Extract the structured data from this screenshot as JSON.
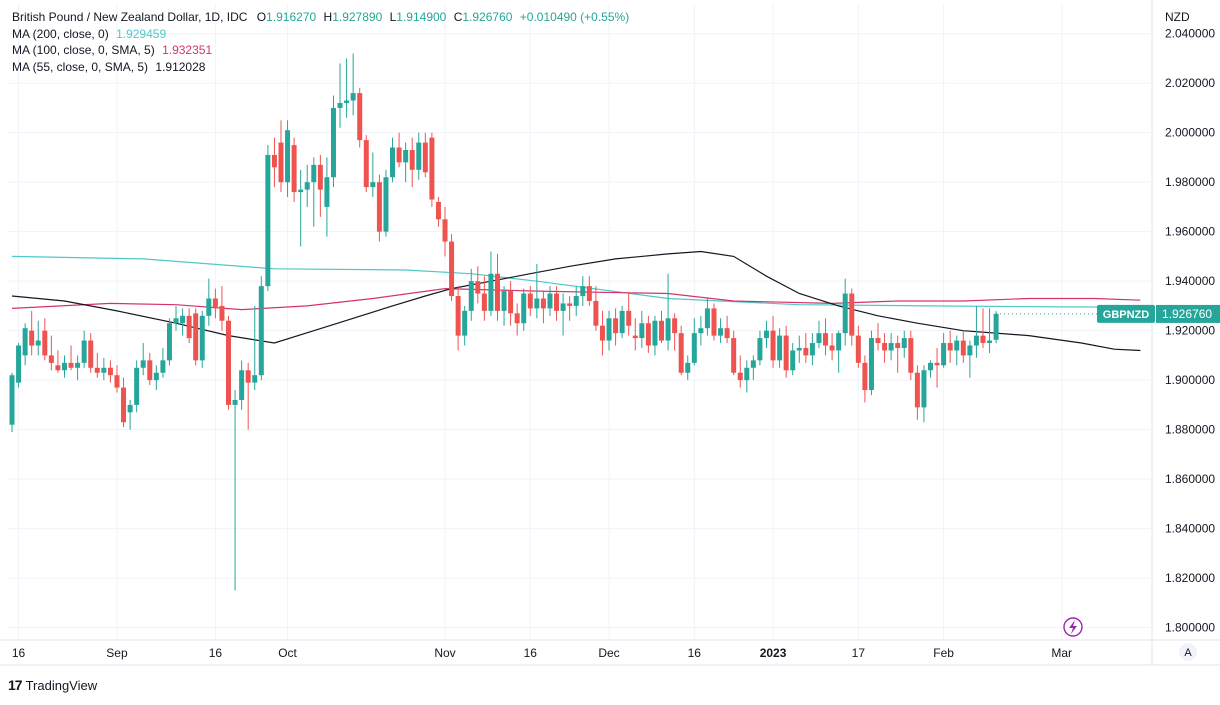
{
  "header": {
    "title": "British Pound / New Zealand Dollar, 1D, IDC",
    "ohlc": [
      {
        "label": "O",
        "value": "1.916270"
      },
      {
        "label": "H",
        "value": "1.927890"
      },
      {
        "label": "L",
        "value": "1.914900"
      },
      {
        "label": "C",
        "value": "1.926760"
      }
    ],
    "change": "+0.010490 (+0.55%)"
  },
  "indicators": [
    {
      "label": "MA (200, close, 0)",
      "value": "1.929459",
      "color": "#4ec8c8"
    },
    {
      "label": "MA (100, close, 0, SMA, 5)",
      "value": "1.932351",
      "color": "#d6336c"
    },
    {
      "label": "MA (55, close, 0, SMA, 5)",
      "value": "1.912028",
      "color": "#131722"
    }
  ],
  "axis": {
    "currency": "NZD",
    "price_ticks": [
      "2.040000",
      "2.020000",
      "2.000000",
      "1.980000",
      "1.960000",
      "1.940000",
      "1.920000",
      "1.900000",
      "1.880000",
      "1.860000",
      "1.840000",
      "1.820000",
      "1.800000"
    ],
    "time_labels": [
      "16",
      "Sep",
      "16",
      "Oct",
      "Nov",
      "16",
      "Dec",
      "16",
      "2023",
      "17",
      "Feb",
      "Mar"
    ],
    "scale_mode": "A"
  },
  "last_price": {
    "symbol": "GBPNZD",
    "value": "1.926760"
  },
  "colors": {
    "up": "#26a69a",
    "down": "#ef5350",
    "grid": "#f0f3fa",
    "axis_text": "#131722",
    "tag_bg": "#26a69a"
  },
  "footer": {
    "brand": "TradingView",
    "logo_glyph": "17"
  },
  "chart_data": {
    "type": "candlestick",
    "title": "British Pound / New Zealand Dollar, 1D, IDC",
    "ylabel": "NZD",
    "ylim": [
      1.795,
      2.052
    ],
    "x_range": [
      0,
      173
    ],
    "time_label_index": [
      1,
      16,
      31,
      42,
      66,
      79,
      91,
      104,
      116,
      129,
      142,
      160
    ],
    "candles": [
      {
        "o": 1.882,
        "h": 1.903,
        "l": 1.879,
        "c": 1.902
      },
      {
        "o": 1.899,
        "h": 1.915,
        "l": 1.897,
        "c": 1.914
      },
      {
        "o": 1.91,
        "h": 1.923,
        "l": 1.906,
        "c": 1.921
      },
      {
        "o": 1.92,
        "h": 1.928,
        "l": 1.91,
        "c": 1.914
      },
      {
        "o": 1.914,
        "h": 1.924,
        "l": 1.91,
        "c": 1.916
      },
      {
        "o": 1.92,
        "h": 1.925,
        "l": 1.908,
        "c": 1.91
      },
      {
        "o": 1.91,
        "h": 1.918,
        "l": 1.904,
        "c": 1.907
      },
      {
        "o": 1.906,
        "h": 1.912,
        "l": 1.903,
        "c": 1.904
      },
      {
        "o": 1.904,
        "h": 1.91,
        "l": 1.901,
        "c": 1.907
      },
      {
        "o": 1.907,
        "h": 1.914,
        "l": 1.904,
        "c": 1.905
      },
      {
        "o": 1.905,
        "h": 1.91,
        "l": 1.9,
        "c": 1.907
      },
      {
        "o": 1.907,
        "h": 1.92,
        "l": 1.905,
        "c": 1.916
      },
      {
        "o": 1.916,
        "h": 1.919,
        "l": 1.903,
        "c": 1.905
      },
      {
        "o": 1.905,
        "h": 1.911,
        "l": 1.901,
        "c": 1.903
      },
      {
        "o": 1.903,
        "h": 1.909,
        "l": 1.9,
        "c": 1.905
      },
      {
        "o": 1.905,
        "h": 1.908,
        "l": 1.899,
        "c": 1.902
      },
      {
        "o": 1.902,
        "h": 1.906,
        "l": 1.895,
        "c": 1.897
      },
      {
        "o": 1.897,
        "h": 1.901,
        "l": 1.881,
        "c": 1.883
      },
      {
        "o": 1.887,
        "h": 1.892,
        "l": 1.88,
        "c": 1.89
      },
      {
        "o": 1.89,
        "h": 1.908,
        "l": 1.887,
        "c": 1.905
      },
      {
        "o": 1.905,
        "h": 1.915,
        "l": 1.902,
        "c": 1.908
      },
      {
        "o": 1.908,
        "h": 1.911,
        "l": 1.898,
        "c": 1.9
      },
      {
        "o": 1.9,
        "h": 1.906,
        "l": 1.896,
        "c": 1.903
      },
      {
        "o": 1.903,
        "h": 1.913,
        "l": 1.901,
        "c": 1.908
      },
      {
        "o": 1.908,
        "h": 1.925,
        "l": 1.906,
        "c": 1.923
      },
      {
        "o": 1.923,
        "h": 1.93,
        "l": 1.92,
        "c": 1.925
      },
      {
        "o": 1.923,
        "h": 1.929,
        "l": 1.918,
        "c": 1.926
      },
      {
        "o": 1.926,
        "h": 1.929,
        "l": 1.915,
        "c": 1.917
      },
      {
        "o": 1.927,
        "h": 1.929,
        "l": 1.906,
        "c": 1.908
      },
      {
        "o": 1.908,
        "h": 1.928,
        "l": 1.905,
        "c": 1.926
      },
      {
        "o": 1.926,
        "h": 1.941,
        "l": 1.922,
        "c": 1.933
      },
      {
        "o": 1.933,
        "h": 1.937,
        "l": 1.925,
        "c": 1.929
      },
      {
        "o": 1.93,
        "h": 1.938,
        "l": 1.92,
        "c": 1.924
      },
      {
        "o": 1.924,
        "h": 1.926,
        "l": 1.888,
        "c": 1.89
      },
      {
        "o": 1.89,
        "h": 1.896,
        "l": 1.815,
        "c": 1.892
      },
      {
        "o": 1.892,
        "h": 1.908,
        "l": 1.888,
        "c": 1.904
      },
      {
        "o": 1.904,
        "h": 1.907,
        "l": 1.88,
        "c": 1.899
      },
      {
        "o": 1.899,
        "h": 1.93,
        "l": 1.896,
        "c": 1.902
      },
      {
        "o": 1.902,
        "h": 1.942,
        "l": 1.9,
        "c": 1.938
      },
      {
        "o": 1.938,
        "h": 1.995,
        "l": 1.936,
        "c": 1.991
      },
      {
        "o": 1.991,
        "h": 1.998,
        "l": 1.978,
        "c": 1.986
      },
      {
        "o": 1.996,
        "h": 2.005,
        "l": 1.976,
        "c": 1.98
      },
      {
        "o": 1.98,
        "h": 2.005,
        "l": 1.974,
        "c": 2.001
      },
      {
        "o": 1.995,
        "h": 1.998,
        "l": 1.972,
        "c": 1.976
      },
      {
        "o": 1.976,
        "h": 1.985,
        "l": 1.954,
        "c": 1.977
      },
      {
        "o": 1.977,
        "h": 1.987,
        "l": 1.97,
        "c": 1.98
      },
      {
        "o": 1.98,
        "h": 1.99,
        "l": 1.962,
        "c": 1.987
      },
      {
        "o": 1.987,
        "h": 1.991,
        "l": 1.966,
        "c": 1.977
      },
      {
        "o": 1.97,
        "h": 1.99,
        "l": 1.958,
        "c": 1.982
      },
      {
        "o": 1.982,
        "h": 2.015,
        "l": 1.978,
        "c": 2.01
      },
      {
        "o": 2.01,
        "h": 2.028,
        "l": 2.002,
        "c": 2.012
      },
      {
        "o": 2.012,
        "h": 2.03,
        "l": 2.006,
        "c": 2.013
      },
      {
        "o": 2.013,
        "h": 2.032,
        "l": 2.007,
        "c": 2.016
      },
      {
        "o": 2.016,
        "h": 2.018,
        "l": 1.994,
        "c": 1.997
      },
      {
        "o": 1.997,
        "h": 1.999,
        "l": 1.976,
        "c": 1.978
      },
      {
        "o": 1.978,
        "h": 1.992,
        "l": 1.974,
        "c": 1.98
      },
      {
        "o": 1.98,
        "h": 1.983,
        "l": 1.956,
        "c": 1.96
      },
      {
        "o": 1.96,
        "h": 1.985,
        "l": 1.958,
        "c": 1.982
      },
      {
        "o": 1.982,
        "h": 1.998,
        "l": 1.98,
        "c": 1.994
      },
      {
        "o": 1.994,
        "h": 2.0,
        "l": 1.986,
        "c": 1.988
      },
      {
        "o": 1.988,
        "h": 1.996,
        "l": 1.98,
        "c": 1.993
      },
      {
        "o": 1.993,
        "h": 1.998,
        "l": 1.978,
        "c": 1.985
      },
      {
        "o": 1.985,
        "h": 2.0,
        "l": 1.981,
        "c": 1.996
      },
      {
        "o": 1.996,
        "h": 2.0,
        "l": 1.982,
        "c": 1.984
      },
      {
        "o": 1.998,
        "h": 2.0,
        "l": 1.97,
        "c": 1.973
      },
      {
        "o": 1.972,
        "h": 1.974,
        "l": 1.962,
        "c": 1.965
      },
      {
        "o": 1.965,
        "h": 1.97,
        "l": 1.95,
        "c": 1.956
      },
      {
        "o": 1.956,
        "h": 1.959,
        "l": 1.932,
        "c": 1.934
      },
      {
        "o": 1.934,
        "h": 1.938,
        "l": 1.912,
        "c": 1.918
      },
      {
        "o": 1.918,
        "h": 1.93,
        "l": 1.914,
        "c": 1.928
      },
      {
        "o": 1.928,
        "h": 1.945,
        "l": 1.924,
        "c": 1.94
      },
      {
        "o": 1.94,
        "h": 1.946,
        "l": 1.931,
        "c": 1.935
      },
      {
        "o": 1.935,
        "h": 1.942,
        "l": 1.924,
        "c": 1.928
      },
      {
        "o": 1.928,
        "h": 1.952,
        "l": 1.926,
        "c": 1.943
      },
      {
        "o": 1.943,
        "h": 1.951,
        "l": 1.924,
        "c": 1.928
      },
      {
        "o": 1.928,
        "h": 1.938,
        "l": 1.922,
        "c": 1.936
      },
      {
        "o": 1.936,
        "h": 1.94,
        "l": 1.922,
        "c": 1.927
      },
      {
        "o": 1.927,
        "h": 1.931,
        "l": 1.918,
        "c": 1.923
      },
      {
        "o": 1.923,
        "h": 1.937,
        "l": 1.92,
        "c": 1.935
      },
      {
        "o": 1.935,
        "h": 1.938,
        "l": 1.926,
        "c": 1.929
      },
      {
        "o": 1.929,
        "h": 1.947,
        "l": 1.925,
        "c": 1.933
      },
      {
        "o": 1.933,
        "h": 1.936,
        "l": 1.923,
        "c": 1.929
      },
      {
        "o": 1.929,
        "h": 1.938,
        "l": 1.926,
        "c": 1.935
      },
      {
        "o": 1.935,
        "h": 1.938,
        "l": 1.924,
        "c": 1.928
      },
      {
        "o": 1.928,
        "h": 1.935,
        "l": 1.918,
        "c": 1.931
      },
      {
        "o": 1.931,
        "h": 1.934,
        "l": 1.924,
        "c": 1.93
      },
      {
        "o": 1.93,
        "h": 1.938,
        "l": 1.926,
        "c": 1.934
      },
      {
        "o": 1.934,
        "h": 1.942,
        "l": 1.93,
        "c": 1.938
      },
      {
        "o": 1.938,
        "h": 1.942,
        "l": 1.93,
        "c": 1.932
      },
      {
        "o": 1.932,
        "h": 1.938,
        "l": 1.92,
        "c": 1.922
      },
      {
        "o": 1.922,
        "h": 1.928,
        "l": 1.91,
        "c": 1.916
      },
      {
        "o": 1.916,
        "h": 1.928,
        "l": 1.912,
        "c": 1.925
      },
      {
        "o": 1.925,
        "h": 1.929,
        "l": 1.914,
        "c": 1.919
      },
      {
        "o": 1.919,
        "h": 1.93,
        "l": 1.917,
        "c": 1.928
      },
      {
        "o": 1.928,
        "h": 1.935,
        "l": 1.918,
        "c": 1.922
      },
      {
        "o": 1.918,
        "h": 1.925,
        "l": 1.912,
        "c": 1.917
      },
      {
        "o": 1.917,
        "h": 1.928,
        "l": 1.913,
        "c": 1.923
      },
      {
        "o": 1.923,
        "h": 1.926,
        "l": 1.911,
        "c": 1.914
      },
      {
        "o": 1.914,
        "h": 1.926,
        "l": 1.91,
        "c": 1.924
      },
      {
        "o": 1.924,
        "h": 1.928,
        "l": 1.915,
        "c": 1.916
      },
      {
        "o": 1.916,
        "h": 1.943,
        "l": 1.912,
        "c": 1.925
      },
      {
        "o": 1.925,
        "h": 1.927,
        "l": 1.912,
        "c": 1.919
      },
      {
        "o": 1.919,
        "h": 1.922,
        "l": 1.902,
        "c": 1.903
      },
      {
        "o": 1.903,
        "h": 1.91,
        "l": 1.9,
        "c": 1.907
      },
      {
        "o": 1.907,
        "h": 1.925,
        "l": 1.906,
        "c": 1.919
      },
      {
        "o": 1.919,
        "h": 1.926,
        "l": 1.914,
        "c": 1.921
      },
      {
        "o": 1.921,
        "h": 1.933,
        "l": 1.918,
        "c": 1.929
      },
      {
        "o": 1.929,
        "h": 1.931,
        "l": 1.916,
        "c": 1.918
      },
      {
        "o": 1.918,
        "h": 1.925,
        "l": 1.915,
        "c": 1.921
      },
      {
        "o": 1.921,
        "h": 1.926,
        "l": 1.915,
        "c": 1.917
      },
      {
        "o": 1.917,
        "h": 1.92,
        "l": 1.902,
        "c": 1.903
      },
      {
        "o": 1.903,
        "h": 1.91,
        "l": 1.897,
        "c": 1.9
      },
      {
        "o": 1.9,
        "h": 1.908,
        "l": 1.895,
        "c": 1.905
      },
      {
        "o": 1.905,
        "h": 1.91,
        "l": 1.9,
        "c": 1.908
      },
      {
        "o": 1.908,
        "h": 1.92,
        "l": 1.906,
        "c": 1.917
      },
      {
        "o": 1.917,
        "h": 1.924,
        "l": 1.913,
        "c": 1.92
      },
      {
        "o": 1.92,
        "h": 1.926,
        "l": 1.905,
        "c": 1.908
      },
      {
        "o": 1.908,
        "h": 1.921,
        "l": 1.905,
        "c": 1.918
      },
      {
        "o": 1.918,
        "h": 1.922,
        "l": 1.901,
        "c": 1.904
      },
      {
        "o": 1.904,
        "h": 1.915,
        "l": 1.902,
        "c": 1.912
      },
      {
        "o": 1.912,
        "h": 1.918,
        "l": 1.907,
        "c": 1.913
      },
      {
        "o": 1.913,
        "h": 1.919,
        "l": 1.907,
        "c": 1.91
      },
      {
        "o": 1.91,
        "h": 1.919,
        "l": 1.906,
        "c": 1.915
      },
      {
        "o": 1.915,
        "h": 1.924,
        "l": 1.913,
        "c": 1.919
      },
      {
        "o": 1.919,
        "h": 1.925,
        "l": 1.91,
        "c": 1.914
      },
      {
        "o": 1.914,
        "h": 1.919,
        "l": 1.908,
        "c": 1.912
      },
      {
        "o": 1.912,
        "h": 1.92,
        "l": 1.903,
        "c": 1.919
      },
      {
        "o": 1.919,
        "h": 1.941,
        "l": 1.914,
        "c": 1.935
      },
      {
        "o": 1.935,
        "h": 1.937,
        "l": 1.914,
        "c": 1.918
      },
      {
        "o": 1.918,
        "h": 1.922,
        "l": 1.905,
        "c": 1.907
      },
      {
        "o": 1.907,
        "h": 1.91,
        "l": 1.891,
        "c": 1.896
      },
      {
        "o": 1.896,
        "h": 1.92,
        "l": 1.894,
        "c": 1.917
      },
      {
        "o": 1.917,
        "h": 1.923,
        "l": 1.912,
        "c": 1.915
      },
      {
        "o": 1.915,
        "h": 1.919,
        "l": 1.907,
        "c": 1.912
      },
      {
        "o": 1.912,
        "h": 1.919,
        "l": 1.908,
        "c": 1.915
      },
      {
        "o": 1.915,
        "h": 1.918,
        "l": 1.903,
        "c": 1.913
      },
      {
        "o": 1.913,
        "h": 1.92,
        "l": 1.909,
        "c": 1.917
      },
      {
        "o": 1.917,
        "h": 1.92,
        "l": 1.9,
        "c": 1.903
      },
      {
        "o": 1.903,
        "h": 1.906,
        "l": 1.884,
        "c": 1.889
      },
      {
        "o": 1.889,
        "h": 1.906,
        "l": 1.883,
        "c": 1.904
      },
      {
        "o": 1.904,
        "h": 1.908,
        "l": 1.901,
        "c": 1.907
      },
      {
        "o": 1.907,
        "h": 1.913,
        "l": 1.897,
        "c": 1.906
      },
      {
        "o": 1.906,
        "h": 1.919,
        "l": 1.905,
        "c": 1.915
      },
      {
        "o": 1.915,
        "h": 1.92,
        "l": 1.907,
        "c": 1.912
      },
      {
        "o": 1.912,
        "h": 1.918,
        "l": 1.906,
        "c": 1.916
      },
      {
        "o": 1.916,
        "h": 1.92,
        "l": 1.907,
        "c": 1.91
      },
      {
        "o": 1.91,
        "h": 1.916,
        "l": 1.901,
        "c": 1.914
      },
      {
        "o": 1.914,
        "h": 1.93,
        "l": 1.909,
        "c": 1.918
      },
      {
        "o": 1.918,
        "h": 1.929,
        "l": 1.913,
        "c": 1.915
      },
      {
        "o": 1.915,
        "h": 1.929,
        "l": 1.911,
        "c": 1.916
      },
      {
        "o": 1.9163,
        "h": 1.9279,
        "l": 1.9149,
        "c": 1.9268
      }
    ],
    "ma_series": [
      {
        "name": "MA (200, close, 0)",
        "color": "#4ec8c8",
        "points": [
          [
            0,
            1.95
          ],
          [
            20,
            1.949
          ],
          [
            40,
            1.945
          ],
          [
            60,
            1.9445
          ],
          [
            70,
            1.943
          ],
          [
            80,
            1.94
          ],
          [
            100,
            1.933
          ],
          [
            120,
            1.9305
          ],
          [
            140,
            1.93
          ],
          [
            160,
            1.9296
          ],
          [
            172,
            1.9295
          ]
        ]
      },
      {
        "name": "MA (100, close, 0, SMA, 5)",
        "color": "#d6336c",
        "points": [
          [
            0,
            1.929
          ],
          [
            15,
            1.931
          ],
          [
            25,
            1.9305
          ],
          [
            35,
            1.9285
          ],
          [
            45,
            1.93
          ],
          [
            55,
            1.933
          ],
          [
            66,
            1.937
          ],
          [
            80,
            1.936
          ],
          [
            100,
            1.935
          ],
          [
            110,
            1.932
          ],
          [
            125,
            1.931
          ],
          [
            135,
            1.932
          ],
          [
            145,
            1.932
          ],
          [
            155,
            1.933
          ],
          [
            165,
            1.933
          ],
          [
            172,
            1.9323
          ]
        ]
      },
      {
        "name": "MA (55, close, 0, SMA, 5)",
        "color": "#131722",
        "points": [
          [
            0,
            1.934
          ],
          [
            8,
            1.932
          ],
          [
            16,
            1.928
          ],
          [
            25,
            1.923
          ],
          [
            33,
            1.918
          ],
          [
            40,
            1.915
          ],
          [
            46,
            1.92
          ],
          [
            52,
            1.925
          ],
          [
            58,
            1.93
          ],
          [
            63,
            1.934
          ],
          [
            67,
            1.937
          ],
          [
            73,
            1.94
          ],
          [
            79,
            1.943
          ],
          [
            85,
            1.946
          ],
          [
            92,
            1.949
          ],
          [
            100,
            1.951
          ],
          [
            105,
            1.952
          ],
          [
            110,
            1.95
          ],
          [
            115,
            1.942
          ],
          [
            120,
            1.935
          ],
          [
            126,
            1.93
          ],
          [
            132,
            1.926
          ],
          [
            138,
            1.923
          ],
          [
            145,
            1.92
          ],
          [
            155,
            1.918
          ],
          [
            163,
            1.915
          ],
          [
            168,
            1.9125
          ],
          [
            172,
            1.912
          ]
        ]
      }
    ]
  }
}
